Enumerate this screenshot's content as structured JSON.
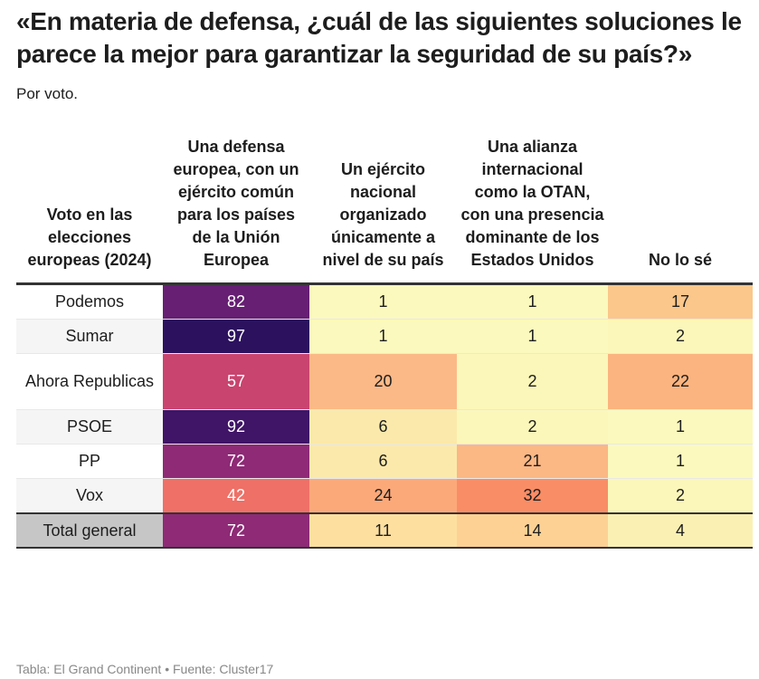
{
  "title": "«En materia de defensa, ¿cuál de las siguientes soluciones le parece la mejor para garantizar la seguridad de su país?»",
  "subtitle": "Por voto.",
  "footer": "Tabla: El Grand Continent • Fuente: Cluster17",
  "chart_data": {
    "type": "heatmap",
    "row_header": "Voto en las elecciones europeas (2024)",
    "columns": [
      "Una defensa europea, con un ejército común para los países de la Unión Europea",
      "Un ejército nacional organizado únicamente a nivel de su país",
      "Una alianza internacional como la OTAN, con una presencia dominante de los Estados Unidos",
      "No lo sé"
    ],
    "rows": [
      {
        "label": "Podemos",
        "values": [
          82,
          1,
          1,
          17
        ],
        "colors": [
          "#661f73",
          "#fbf9bd",
          "#fbf9bd",
          "#fbc78a"
        ],
        "bg": "#ffffff"
      },
      {
        "label": "Sumar",
        "values": [
          97,
          1,
          1,
          2
        ],
        "colors": [
          "#2c115f",
          "#fbf9bd",
          "#fbf9bd",
          "#fbf7ba"
        ],
        "bg": "#f5f5f5"
      },
      {
        "label": "Ahora Republicas",
        "values": [
          57,
          20,
          2,
          22
        ],
        "colors": [
          "#c9446f",
          "#fbb987",
          "#fbf7ba",
          "#fbb47f"
        ],
        "bg": "#ffffff"
      },
      {
        "label": "PSOE",
        "values": [
          92,
          6,
          2,
          1
        ],
        "colors": [
          "#401467",
          "#fbe9ab",
          "#fbf7ba",
          "#fbf9bd"
        ],
        "bg": "#f5f5f5"
      },
      {
        "label": "PP",
        "values": [
          72,
          6,
          21,
          1
        ],
        "colors": [
          "#8e2a76",
          "#fbe9ab",
          "#fbb784",
          "#fbf9bd"
        ],
        "bg": "#ffffff"
      },
      {
        "label": "Vox",
        "values": [
          42,
          24,
          32,
          2
        ],
        "colors": [
          "#ee7067",
          "#fca97a",
          "#f98d66",
          "#fbf7ba"
        ],
        "bg": "#f5f5f5"
      },
      {
        "label": "Total general",
        "values": [
          72,
          11,
          14,
          4
        ],
        "colors": [
          "#8e2a76",
          "#fde0a0",
          "#fdd194",
          "#fbf0b3"
        ],
        "bg": "#c6c6c6"
      }
    ],
    "text_colors": {
      "dark_cell": "#ffffff",
      "light_cell": "#1d1d1d"
    }
  }
}
